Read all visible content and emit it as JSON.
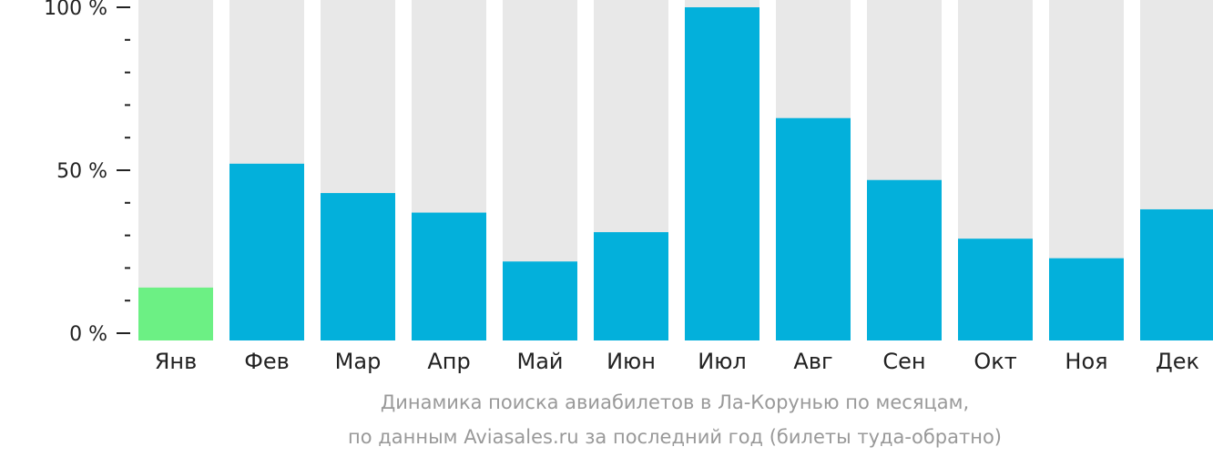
{
  "chart_data": {
    "type": "bar",
    "categories": [
      "Янв",
      "Фев",
      "Мар",
      "Апр",
      "Май",
      "Июн",
      "Июл",
      "Авг",
      "Сен",
      "Окт",
      "Ноя",
      "Дек"
    ],
    "values": [
      14,
      52,
      43,
      37,
      22,
      31,
      100,
      66,
      47,
      29,
      23,
      38
    ],
    "ylim": [
      0,
      100
    ],
    "yticks": [
      {
        "value": 0,
        "label": "0 %"
      },
      {
        "value": 50,
        "label": "50 %"
      },
      {
        "value": 100,
        "label": "100 %"
      }
    ],
    "minor_ticks_between_major": 4,
    "highlight_index": 0,
    "caption_line_1": "Динамика поиска авиабилетов в Ла-Корунью по месяцам,",
    "caption_line_2": "по данным Aviasales.ru за последний год (билеты туда-обратно)",
    "colors": {
      "bar": "#03b0db",
      "highlight": "#6cf084",
      "background_bar": "#e8e8e8",
      "tick": "#222222",
      "caption": "#999999"
    }
  }
}
